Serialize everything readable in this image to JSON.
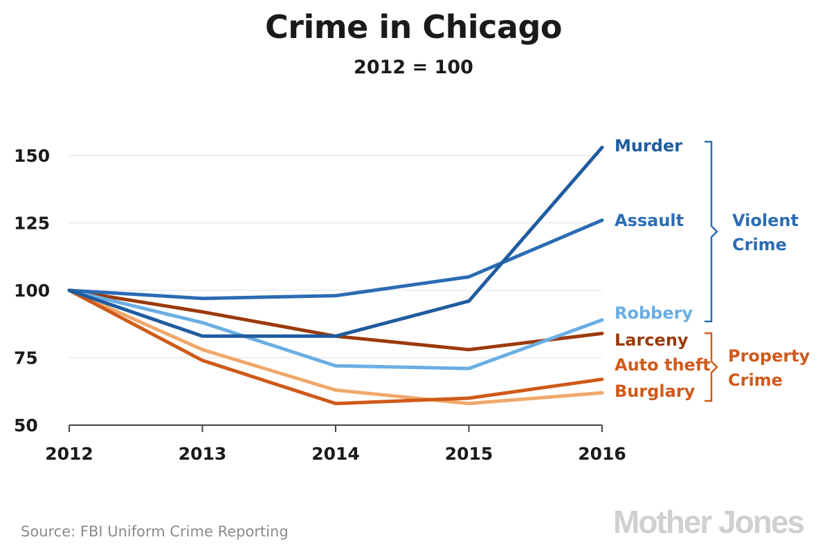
{
  "title": "Crime in Chicago",
  "subtitle": "2012 = 100",
  "source": "Source: FBI Uniform Crime Reporting",
  "brand": "Mother Jones",
  "colors": {
    "murder": "#1f5c9e",
    "assault": "#2b6cb3",
    "robbery": "#6aaee3",
    "larceny": "#9a3a0c",
    "auto_theft": "#f0a86a",
    "burglary": "#cf5a1a",
    "violent_bracket": "#2b6cb3",
    "property_bracket": "#cf5a1a"
  },
  "groups": [
    {
      "label_line1": "Violent",
      "label_line2": "Crime",
      "series": [
        "Murder",
        "Assault",
        "Robbery"
      ]
    },
    {
      "label_line1": "Property",
      "label_line2": "Crime",
      "series": [
        "Larceny",
        "Auto theft",
        "Burglary"
      ]
    }
  ],
  "chart_data": {
    "type": "line",
    "title": "Crime in Chicago",
    "subtitle": "2012 = 100",
    "x": [
      "2012",
      "2013",
      "2014",
      "2015",
      "2016"
    ],
    "ylim": [
      50,
      150
    ],
    "yticks": [
      50,
      75,
      100,
      125,
      150
    ],
    "grid": true,
    "legend": "direct labels right",
    "series": [
      {
        "name": "Murder",
        "key": "murder",
        "values": [
          100,
          83,
          83,
          96,
          153
        ]
      },
      {
        "name": "Assault",
        "key": "assault",
        "values": [
          100,
          97,
          98,
          105,
          126
        ]
      },
      {
        "name": "Robbery",
        "key": "robbery",
        "values": [
          100,
          88,
          72,
          71,
          89
        ]
      },
      {
        "name": "Larceny",
        "key": "larceny",
        "values": [
          100,
          92,
          83,
          78,
          84
        ]
      },
      {
        "name": "Auto theft",
        "key": "auto_theft",
        "values": [
          100,
          78,
          63,
          58,
          62
        ]
      },
      {
        "name": "Burglary",
        "key": "burglary",
        "values": [
          100,
          74,
          58,
          60,
          67
        ]
      }
    ]
  }
}
